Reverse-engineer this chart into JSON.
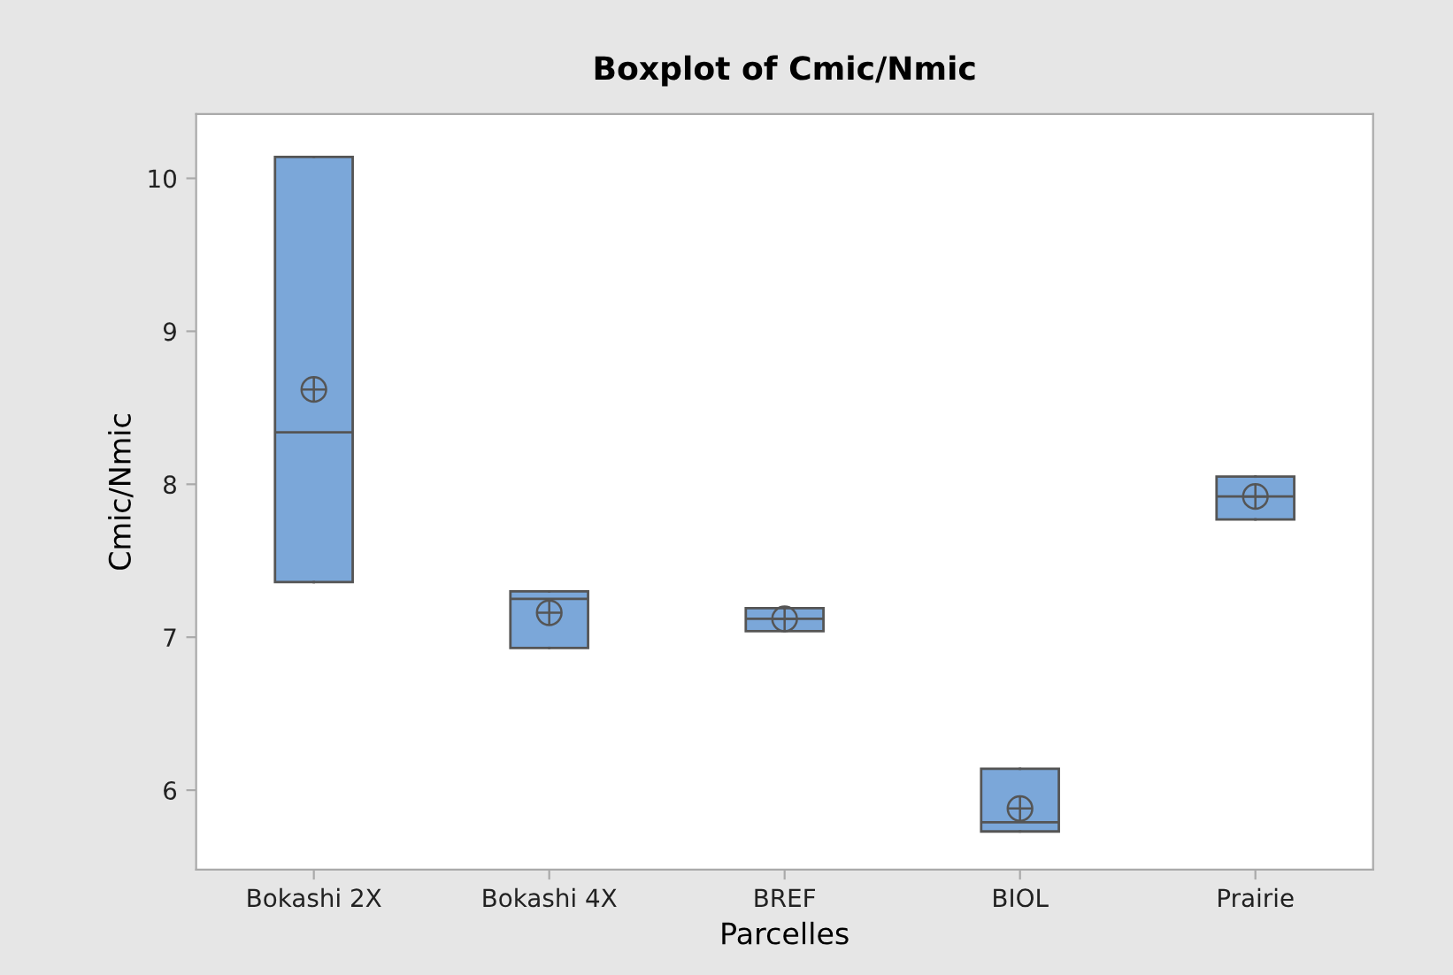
{
  "chart_data": {
    "type": "box",
    "title": "Boxplot of Cmic/Nmic",
    "xlabel": "Parcelles",
    "ylabel": "Cmic/Nmic",
    "categories": [
      "Bokashi 2X",
      "Bokashi 4X",
      "BREF",
      "BIOL",
      "Prairie"
    ],
    "color": "#7ba7d9",
    "boxes": [
      {
        "low": 7.36,
        "q1": 7.36,
        "median": 8.34,
        "q3": 10.14,
        "high": 10.14,
        "mean": 8.62
      },
      {
        "low": 6.93,
        "q1": 6.93,
        "median": 7.25,
        "q3": 7.3,
        "high": 7.3,
        "mean": 7.16
      },
      {
        "low": 7.04,
        "q1": 7.04,
        "median": 7.12,
        "q3": 7.19,
        "high": 7.19,
        "mean": 7.12
      },
      {
        "low": 5.73,
        "q1": 5.73,
        "median": 5.79,
        "q3": 6.14,
        "high": 6.14,
        "mean": 5.88
      },
      {
        "low": 7.77,
        "q1": 7.77,
        "median": 7.92,
        "q3": 8.05,
        "high": 8.05,
        "mean": 7.92
      }
    ],
    "ylim": [
      5.48,
      10.42
    ],
    "yticks": [
      6,
      7,
      8,
      9,
      10
    ],
    "grid": false
  }
}
